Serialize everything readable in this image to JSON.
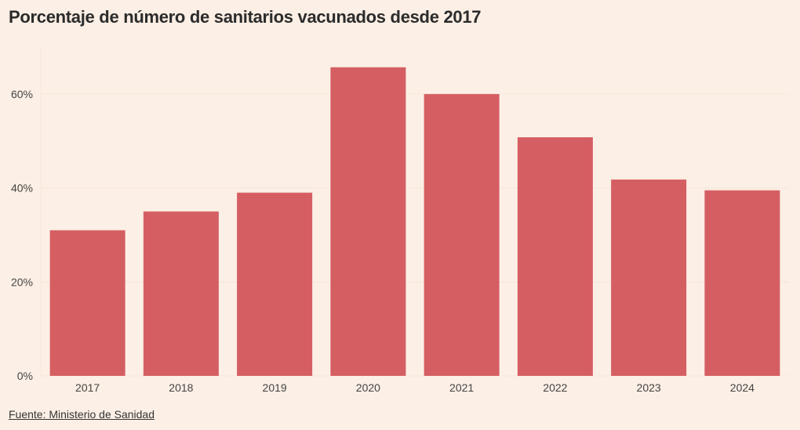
{
  "title": "Porcentaje de número de sanitarios vacunados desde 2017",
  "source": "Fuente: Ministerio de Sanidad",
  "colors": {
    "bar": "#d55e63",
    "grid": "#f8e6da",
    "background": "#fcefe5"
  },
  "chart_data": {
    "type": "bar",
    "title": "Porcentaje de número de sanitarios vacunados desde 2017",
    "xlabel": "",
    "ylabel": "",
    "categories": [
      "2017",
      "2018",
      "2019",
      "2020",
      "2021",
      "2022",
      "2023",
      "2024"
    ],
    "values": [
      31,
      35,
      39,
      65.7,
      60,
      50.8,
      41.8,
      39.5
    ],
    "ylim": [
      0,
      70
    ],
    "yticks": [
      0,
      20,
      40,
      60
    ],
    "ytick_labels": [
      "0%",
      "20%",
      "40%",
      "60%"
    ],
    "grid": true
  }
}
